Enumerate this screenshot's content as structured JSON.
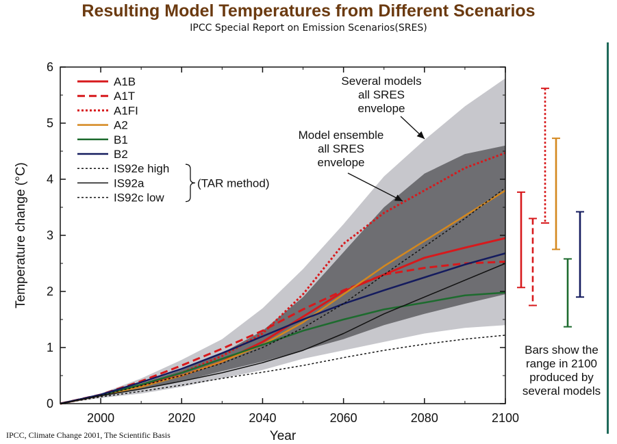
{
  "header": {
    "title": "Resulting Model Temperatures from Different Scenarios",
    "subtitle": "IPCC Special Report on Emission Scenarios(SRES)"
  },
  "source": "IPCC, Climate Change 2001, The Scientific Basis",
  "chart_data": {
    "type": "line",
    "xlabel": "Year",
    "ylabel": "Temperature change (°C)",
    "xlim": [
      1990,
      2100
    ],
    "ylim": [
      0,
      6
    ],
    "x_ticks": [
      "2000",
      "2020",
      "2040",
      "2060",
      "2080",
      "2100"
    ],
    "y_ticks": [
      "0",
      "1",
      "2",
      "3",
      "4",
      "5",
      "6"
    ],
    "x": [
      1990,
      2000,
      2010,
      2020,
      2030,
      2040,
      2050,
      2060,
      2070,
      2080,
      2090,
      2100
    ],
    "series": [
      {
        "name": "A1B",
        "color": "#d7191c",
        "dash": "solid",
        "width": 3,
        "values": [
          0,
          0.15,
          0.32,
          0.5,
          0.75,
          1.1,
          1.55,
          2.0,
          2.3,
          2.6,
          2.78,
          2.95
        ]
      },
      {
        "name": "A1T",
        "color": "#d7191c",
        "dash": "dashed",
        "width": 3,
        "values": [
          0,
          0.16,
          0.4,
          0.68,
          0.98,
          1.3,
          1.68,
          2.02,
          2.3,
          2.42,
          2.5,
          2.53
        ]
      },
      {
        "name": "A1FI",
        "color": "#d7191c",
        "dash": "dotted",
        "width": 3,
        "values": [
          0,
          0.15,
          0.32,
          0.55,
          0.85,
          1.25,
          1.95,
          2.85,
          3.4,
          3.8,
          4.2,
          4.47
        ]
      },
      {
        "name": "A2",
        "color": "#d4881e",
        "dash": "solid",
        "width": 2.5,
        "values": [
          0,
          0.15,
          0.3,
          0.5,
          0.75,
          1.05,
          1.45,
          1.95,
          2.45,
          2.9,
          3.35,
          3.8
        ]
      },
      {
        "name": "B1",
        "color": "#1d6b2e",
        "dash": "solid",
        "width": 2.5,
        "values": [
          0,
          0.15,
          0.34,
          0.55,
          0.8,
          1.05,
          1.3,
          1.5,
          1.68,
          1.8,
          1.93,
          1.98
        ]
      },
      {
        "name": "B2",
        "color": "#141b5e",
        "dash": "solid",
        "width": 2.5,
        "values": [
          0,
          0.16,
          0.38,
          0.62,
          0.9,
          1.2,
          1.5,
          1.78,
          2.02,
          2.25,
          2.48,
          2.68
        ]
      },
      {
        "name": "IS92e high",
        "color": "#111111",
        "dash": "dotted",
        "width": 1.5,
        "values": [
          0,
          0.15,
          0.32,
          0.5,
          0.72,
          1.0,
          1.35,
          1.78,
          2.3,
          2.8,
          3.3,
          3.85
        ]
      },
      {
        "name": "IS92a",
        "color": "#111111",
        "dash": "solid",
        "width": 1.5,
        "values": [
          0,
          0.14,
          0.26,
          0.4,
          0.55,
          0.73,
          0.95,
          1.25,
          1.6,
          1.9,
          2.2,
          2.5
        ]
      },
      {
        "name": "IS92c low",
        "color": "#111111",
        "dash": "dotted",
        "width": 1.5,
        "values": [
          0,
          0.12,
          0.22,
          0.33,
          0.45,
          0.56,
          0.68,
          0.82,
          0.95,
          1.06,
          1.15,
          1.22
        ]
      }
    ],
    "envelopes": [
      {
        "name": "Several models all SRES envelope",
        "color": "#c7c7cc",
        "upper": [
          0,
          0.18,
          0.45,
          0.78,
          1.15,
          1.7,
          2.4,
          3.2,
          4.05,
          4.7,
          5.3,
          5.8
        ],
        "lower": [
          0,
          0.1,
          0.18,
          0.3,
          0.45,
          0.6,
          0.8,
          0.95,
          1.1,
          1.25,
          1.35,
          1.4
        ]
      },
      {
        "name": "Model ensemble all SRES envelope",
        "color": "#6e6e72",
        "upper": [
          0,
          0.16,
          0.36,
          0.6,
          0.9,
          1.3,
          1.9,
          2.7,
          3.5,
          4.1,
          4.45,
          4.6
        ],
        "lower": [
          0,
          0.13,
          0.26,
          0.4,
          0.58,
          0.75,
          0.95,
          1.15,
          1.4,
          1.6,
          1.78,
          1.95
        ]
      }
    ],
    "bars_2100": [
      {
        "scenario": "A1B",
        "color": "#d7191c",
        "dash": "solid",
        "low": 2.07,
        "high": 3.77
      },
      {
        "scenario": "A1T",
        "color": "#d7191c",
        "dash": "dashed",
        "low": 1.75,
        "high": 3.3
      },
      {
        "scenario": "A1FI",
        "color": "#d7191c",
        "dash": "dotted",
        "low": 3.22,
        "high": 5.62
      },
      {
        "scenario": "A2",
        "color": "#d4881e",
        "dash": "solid",
        "low": 2.75,
        "high": 4.73
      },
      {
        "scenario": "B1",
        "color": "#1d6b2e",
        "dash": "solid",
        "low": 1.37,
        "high": 2.58
      },
      {
        "scenario": "B2",
        "color": "#141b5e",
        "dash": "solid",
        "low": 1.9,
        "high": 3.42
      }
    ],
    "tar_brace_label": "(TAR method)",
    "annotations": {
      "several_models": [
        "Several models",
        "all SRES",
        "envelope"
      ],
      "ensemble": [
        "Model ensemble",
        "all SRES",
        "envelope"
      ],
      "bars_note": [
        "Bars show the",
        "range in 2100",
        "produced by",
        "several models"
      ]
    },
    "legend_position": "top-left"
  }
}
